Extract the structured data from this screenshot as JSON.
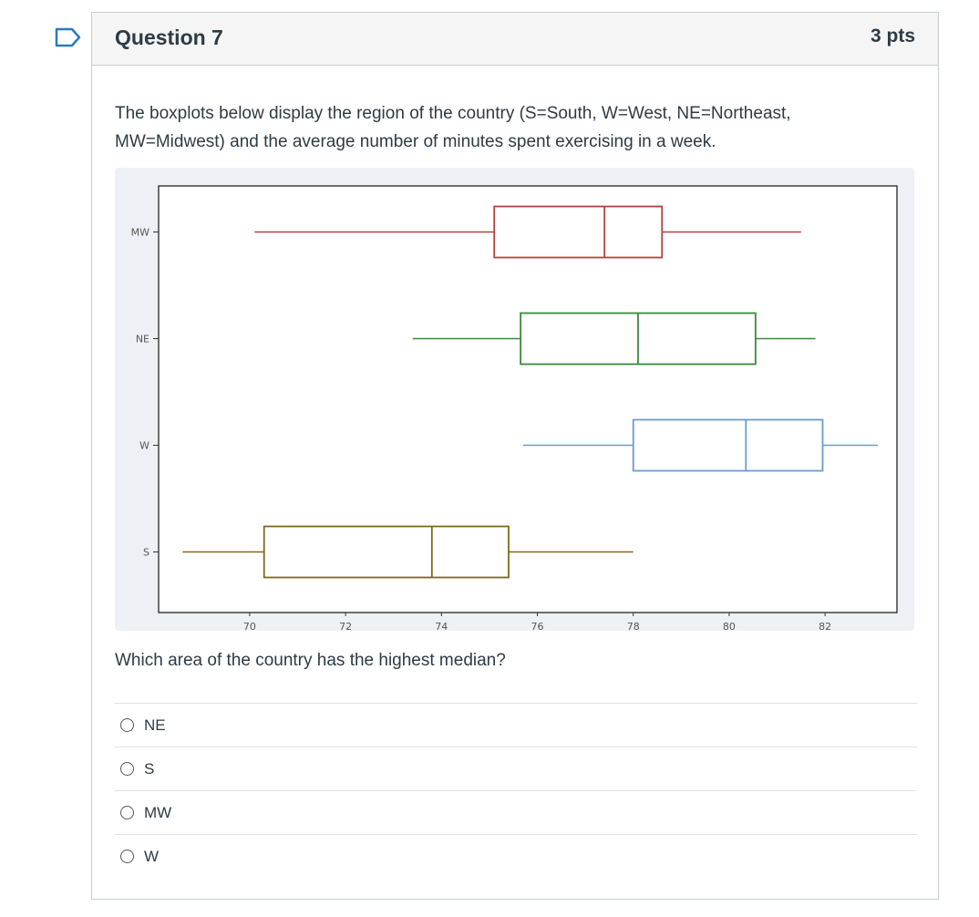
{
  "question": {
    "title": "Question 7",
    "points": "3 pts",
    "text": "The boxplots below display the region of the country (S=South, W=West, NE=Northeast, MW=Midwest) and the average number of minutes spent exercising in a week.",
    "prompt": "Which area of the country has the highest median?"
  },
  "icons": {
    "flag": "flag-icon"
  },
  "answers": [
    {
      "label": "NE"
    },
    {
      "label": "S"
    },
    {
      "label": "MW"
    },
    {
      "label": "W"
    }
  ],
  "chart_data": {
    "type": "boxplot",
    "title": "",
    "xlabel": "",
    "ylabel": "",
    "xlim": [
      68.1,
      83.5
    ],
    "xticks": [
      70,
      72,
      74,
      76,
      78,
      80,
      82
    ],
    "categories": [
      "MW",
      "NE",
      "W",
      "S"
    ],
    "boxes": [
      {
        "category": "MW",
        "whisker_low": 70.1,
        "q1": 75.1,
        "median": 77.4,
        "q3": 78.6,
        "whisker_high": 81.5,
        "color": "#b84040"
      },
      {
        "category": "NE",
        "whisker_low": 73.4,
        "q1": 75.65,
        "median": 78.1,
        "q3": 80.55,
        "whisker_high": 81.8,
        "color": "#3a8a3a"
      },
      {
        "category": "W",
        "whisker_low": 75.7,
        "q1": 78.0,
        "median": 80.35,
        "q3": 81.95,
        "whisker_high": 83.1,
        "color": "#6a9ccc"
      },
      {
        "category": "S",
        "whisker_low": 68.6,
        "q1": 70.3,
        "median": 73.8,
        "q3": 75.4,
        "whisker_high": 78.0,
        "color": "#7d6a1e"
      }
    ],
    "grid": false,
    "legend": "none"
  }
}
